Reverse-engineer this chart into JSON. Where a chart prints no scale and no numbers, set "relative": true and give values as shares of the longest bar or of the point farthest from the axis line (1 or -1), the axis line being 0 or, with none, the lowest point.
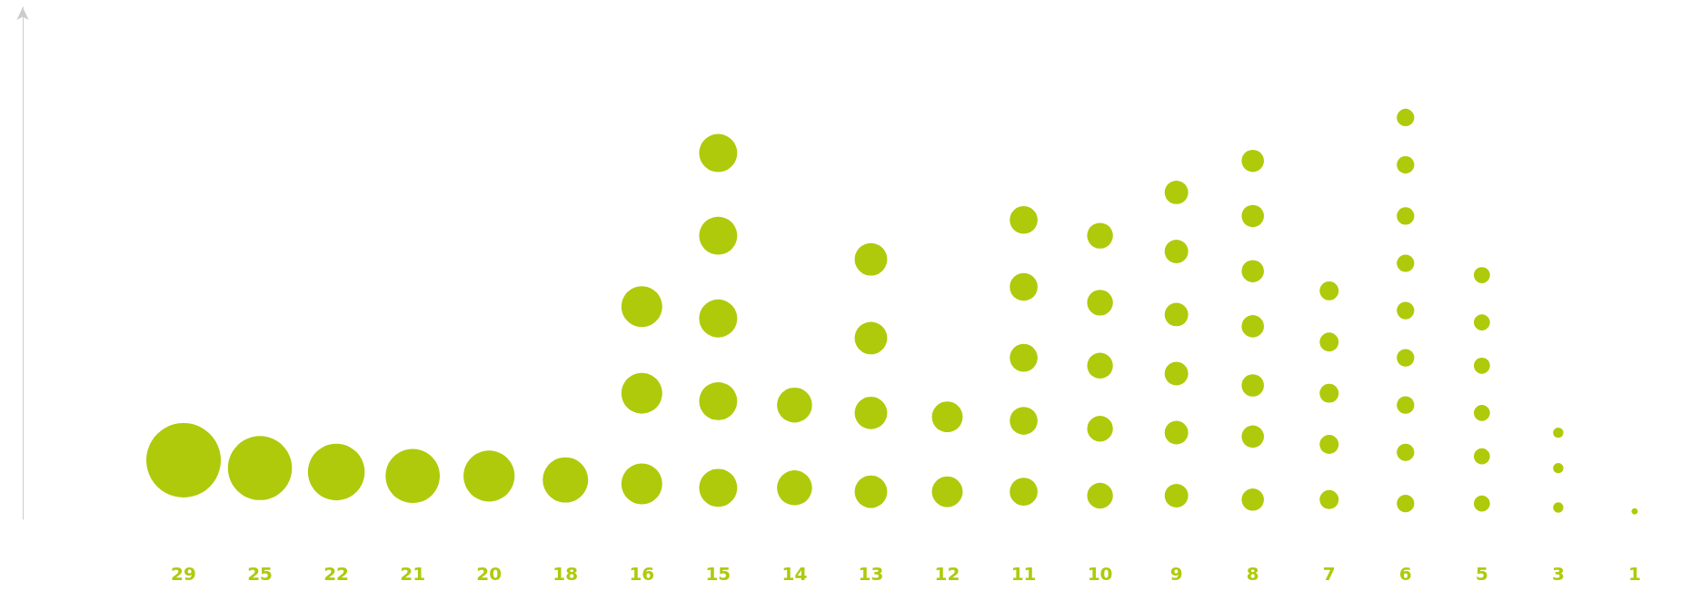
{
  "chart_data": {
    "type": "bubble",
    "relative": true,
    "grid": false,
    "marker": "circle",
    "categories": [
      "29",
      "25",
      "22",
      "21",
      "20",
      "18",
      "16",
      "15",
      "14",
      "13",
      "12",
      "11",
      "10",
      "9",
      "8",
      "7",
      "6",
      "5",
      "3",
      "1"
    ],
    "series": [
      {
        "color": "#afca0b",
        "values": [
          0.13,
          0.11,
          0.1,
          0.09,
          0.09,
          0.08,
          0.07,
          0.06,
          0.06,
          0.05,
          0.05,
          0.05,
          0.04,
          0.04,
          0.03,
          0.03,
          0.02,
          0.02,
          0.01,
          0
        ],
        "sizes": [
          1,
          0.74,
          0.58,
          0.53,
          0.47,
          0.37,
          0.3,
          0.26,
          0.22,
          0.19,
          0.17,
          0.14,
          0.12,
          0.1,
          0.09,
          0.065,
          0.055,
          0.047,
          0.019,
          0.007
        ]
      },
      {
        "color": "#afca0b",
        "values": [
          null,
          null,
          null,
          null,
          null,
          null,
          0.3,
          0.28,
          0.27,
          0.25,
          0.24,
          0.23,
          0.21,
          0.2,
          0.19,
          0.17,
          0.15,
          0.14,
          0.11,
          null
        ],
        "sizes": [
          null,
          null,
          null,
          null,
          null,
          null,
          0.3,
          0.26,
          0.22,
          0.19,
          0.17,
          0.14,
          0.12,
          0.1,
          0.09,
          0.065,
          0.055,
          0.047,
          0.019,
          null
        ]
      },
      {
        "color": "#afca0b",
        "values": [
          null,
          null,
          null,
          null,
          null,
          null,
          0.52,
          0.49,
          null,
          0.44,
          null,
          0.39,
          0.37,
          0.35,
          0.32,
          0.3,
          0.27,
          0.25,
          0.2,
          null
        ],
        "sizes": [
          null,
          null,
          null,
          null,
          null,
          null,
          0.3,
          0.26,
          null,
          0.19,
          null,
          0.14,
          0.12,
          0.1,
          0.09,
          0.065,
          0.055,
          0.047,
          0.019,
          null
        ]
      },
      {
        "color": "#afca0b",
        "values": [
          null,
          null,
          null,
          null,
          null,
          null,
          null,
          0.7,
          null,
          0.64,
          null,
          0.57,
          0.53,
          0.5,
          0.47,
          0.43,
          0.39,
          0.37,
          null,
          null
        ],
        "sizes": [
          null,
          null,
          null,
          null,
          null,
          null,
          null,
          0.26,
          null,
          0.19,
          null,
          0.14,
          0.12,
          0.1,
          0.09,
          0.065,
          0.055,
          0.047,
          null,
          null
        ]
      },
      {
        "color": "#afca0b",
        "values": [
          null,
          null,
          null,
          null,
          null,
          null,
          null,
          0.91,
          null,
          null,
          null,
          0.74,
          0.7,
          0.66,
          0.61,
          0.56,
          0.51,
          0.48,
          null,
          null
        ],
        "sizes": [
          null,
          null,
          null,
          null,
          null,
          null,
          null,
          0.26,
          null,
          null,
          null,
          0.14,
          0.12,
          0.1,
          0.09,
          0.065,
          0.055,
          0.047,
          null,
          null
        ]
      },
      {
        "color": "#afca0b",
        "values": [
          null,
          null,
          null,
          null,
          null,
          null,
          null,
          null,
          null,
          null,
          null,
          null,
          null,
          0.81,
          0.75,
          null,
          0.63,
          0.6,
          null,
          null
        ],
        "sizes": [
          null,
          null,
          null,
          null,
          null,
          null,
          null,
          null,
          null,
          null,
          null,
          null,
          null,
          0.1,
          0.09,
          null,
          0.055,
          0.047,
          null,
          null
        ]
      },
      {
        "color": "#afca0b",
        "values": [
          null,
          null,
          null,
          null,
          null,
          null,
          null,
          null,
          null,
          null,
          null,
          null,
          null,
          null,
          0.89,
          null,
          0.75,
          null,
          null,
          null
        ],
        "sizes": [
          null,
          null,
          null,
          null,
          null,
          null,
          null,
          null,
          null,
          null,
          null,
          null,
          null,
          null,
          0.09,
          null,
          0.055,
          null,
          null,
          null
        ]
      },
      {
        "color": "#afca0b",
        "values": [
          null,
          null,
          null,
          null,
          null,
          null,
          null,
          null,
          null,
          null,
          null,
          null,
          null,
          null,
          null,
          null,
          0.88,
          null,
          null,
          null
        ],
        "sizes": [
          null,
          null,
          null,
          null,
          null,
          null,
          null,
          null,
          null,
          null,
          null,
          null,
          null,
          null,
          null,
          null,
          0.055,
          null,
          null,
          null
        ]
      },
      {
        "color": "#afca0b",
        "values": [
          null,
          null,
          null,
          null,
          null,
          null,
          null,
          null,
          null,
          null,
          null,
          null,
          null,
          null,
          null,
          null,
          1,
          null,
          null,
          null
        ],
        "sizes": [
          null,
          null,
          null,
          null,
          null,
          null,
          null,
          null,
          null,
          null,
          null,
          null,
          null,
          null,
          null,
          null,
          0.055,
          null,
          null,
          null
        ]
      }
    ]
  }
}
